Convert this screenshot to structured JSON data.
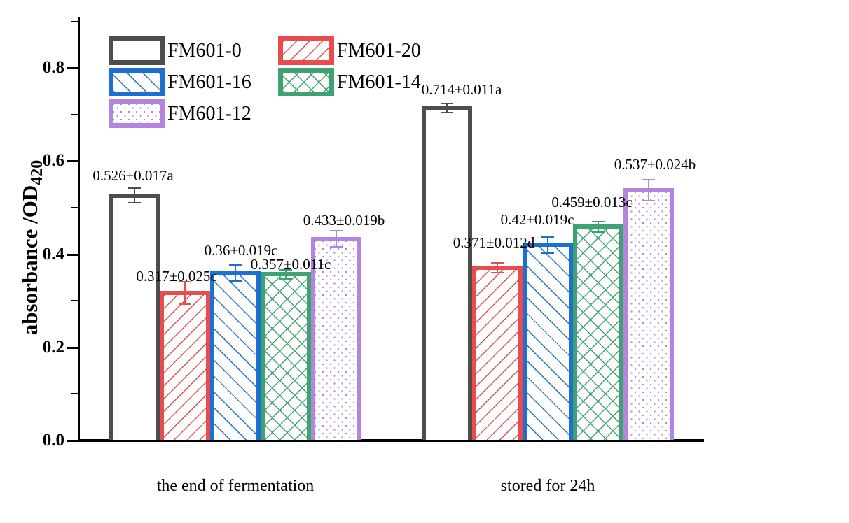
{
  "chart_data": {
    "type": "bar",
    "title": "",
    "ylabel": "absorbance /OD",
    "ylabel_subscript": "420",
    "xlabel": "",
    "ylim": [
      0.0,
      0.9
    ],
    "grid": false,
    "legend_position": "upper-left",
    "ytick_labels": [
      "0.0",
      "0.2",
      "0.4",
      "0.6",
      "0.8"
    ],
    "yticks_major": [
      0.0,
      0.2,
      0.4,
      0.6,
      0.8
    ],
    "yticks_minor": [
      0.1,
      0.3,
      0.5,
      0.7,
      0.9
    ],
    "categories": [
      "the end of fermentation",
      "stored for 24h"
    ],
    "series": [
      {
        "name": "FM601-0",
        "color": "#4d4d4d",
        "hatch": "none",
        "values": [
          0.526,
          0.714
        ],
        "errors": [
          0.017,
          0.011
        ],
        "labels": [
          "0.526±0.017a",
          "0.714±0.011a"
        ],
        "label_dx": [
          -2,
          21
        ],
        "label_gap": [
          5,
          7
        ]
      },
      {
        "name": "FM601-20",
        "color": "#e84c4f",
        "hatch": "diag-up",
        "values": [
          0.317,
          0.371
        ],
        "errors": [
          0.025,
          0.012
        ],
        "labels": [
          "0.317±0.025c",
          "0.371±0.012d"
        ],
        "label_dx": [
          -12,
          -5
        ],
        "label_gap": [
          -5,
          16
        ]
      },
      {
        "name": "FM601-16",
        "color": "#1d6fd1",
        "hatch": "diag-down",
        "values": [
          0.36,
          0.42
        ],
        "errors": [
          0.019,
          0.019
        ],
        "labels": [
          "0.36±0.019c",
          "0.42±0.019c"
        ],
        "label_dx": [
          8,
          -15
        ],
        "label_gap": [
          8,
          12
        ]
      },
      {
        "name": "FM601-14",
        "color": "#3da471",
        "hatch": "cross",
        "values": [
          0.357,
          0.459
        ],
        "errors": [
          0.011,
          0.013
        ],
        "labels": [
          "0.357±0.011c",
          "0.459±0.013c"
        ],
        "label_dx": [
          7,
          -9
        ],
        "label_gap": [
          -5,
          15
        ]
      },
      {
        "name": "FM601-12",
        "color": "#b384e0",
        "hatch": "dots",
        "values": [
          0.433,
          0.537
        ],
        "errors": [
          0.019,
          0.024
        ],
        "labels": [
          "0.433±0.019b",
          "0.537±0.024b"
        ],
        "label_dx": [
          11,
          9
        ],
        "label_gap": [
          2,
          9
        ]
      }
    ],
    "legend_entries": [
      "FM601-0",
      "FM601-20",
      "FM601-16",
      "FM601-14",
      "FM601-12"
    ]
  }
}
